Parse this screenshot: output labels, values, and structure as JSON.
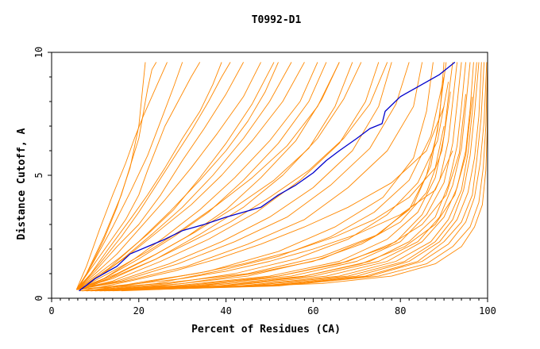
{
  "chart_data": {
    "type": "line",
    "title": "T0992-D1",
    "xlabel": "Percent of Residues (CA)",
    "ylabel": "Distance Cutoff, A",
    "xlim": [
      0,
      100
    ],
    "ylim": [
      0,
      10
    ],
    "xticks": [
      0,
      20,
      40,
      60,
      80,
      100
    ],
    "yticks": [
      0,
      5,
      10
    ],
    "xtick_labels": [
      "0",
      "20",
      "40",
      "60",
      "80",
      "100"
    ],
    "ytick_labels": [
      "0",
      "5",
      "10"
    ],
    "grid": false,
    "colors": {
      "highlight": "#0000cc",
      "others": "#ff8800"
    },
    "highlight_series": {
      "x": [
        6.3,
        10,
        15,
        18,
        22,
        26,
        30,
        35,
        40,
        44,
        48,
        52,
        56,
        60,
        63,
        66,
        70,
        73,
        75.8,
        76.5,
        80,
        84,
        89,
        92.5
      ],
      "y": [
        0.3,
        0.8,
        1.3,
        1.8,
        2.1,
        2.4,
        2.75,
        3.0,
        3.3,
        3.5,
        3.7,
        4.2,
        4.6,
        5.1,
        5.6,
        6.0,
        6.5,
        6.9,
        7.1,
        7.6,
        8.2,
        8.6,
        9.1,
        9.6
      ]
    },
    "other_series": [
      {
        "x": [
          5.7,
          8,
          12,
          16,
          20,
          22,
          23,
          24
        ],
        "y": [
          0.35,
          1.0,
          2.5,
          4.2,
          6.5,
          8.5,
          9.3,
          9.6
        ]
      },
      {
        "x": [
          5.7,
          9,
          13,
          17,
          20,
          22,
          24,
          26,
          29,
          32,
          34
        ],
        "y": [
          0.35,
          1.2,
          2.2,
          3.2,
          4.2,
          5.2,
          6.1,
          7.0,
          8.0,
          9.0,
          9.6
        ]
      },
      {
        "x": [
          5.7,
          9,
          13,
          18,
          22,
          26,
          30,
          34,
          37,
          39
        ],
        "y": [
          0.35,
          1.0,
          2.0,
          3.2,
          4.2,
          5.3,
          6.5,
          7.6,
          8.7,
          9.6
        ]
      },
      {
        "x": [
          5.7,
          10,
          15,
          20,
          25,
          30,
          35,
          40,
          44
        ],
        "y": [
          0.35,
          1.1,
          2.1,
          3.0,
          4.2,
          5.6,
          6.9,
          8.3,
          9.6
        ]
      },
      {
        "x": [
          5.7,
          10,
          15,
          20,
          26,
          32,
          38,
          44,
          48
        ],
        "y": [
          0.35,
          1.0,
          1.8,
          2.8,
          4.0,
          5.3,
          6.7,
          8.2,
          9.6
        ]
      },
      {
        "x": [
          5.7,
          10,
          16,
          22,
          28,
          34,
          40,
          46,
          51
        ],
        "y": [
          0.35,
          0.9,
          1.7,
          2.6,
          3.6,
          4.9,
          6.3,
          7.9,
          9.6
        ]
      },
      {
        "x": [
          5.7,
          11,
          17,
          23,
          30,
          37,
          44,
          50,
          55
        ],
        "y": [
          0.35,
          0.9,
          1.7,
          2.6,
          3.7,
          5.0,
          6.5,
          8.0,
          9.6
        ]
      },
      {
        "x": [
          5.7,
          11,
          18,
          25,
          32,
          39,
          46,
          53,
          58
        ],
        "y": [
          0.35,
          0.9,
          1.8,
          2.8,
          3.8,
          5.0,
          6.4,
          8.0,
          9.6
        ]
      },
      {
        "x": [
          5.7,
          12,
          19,
          26,
          34,
          42,
          50,
          57,
          61
        ],
        "y": [
          0.35,
          0.8,
          1.6,
          2.5,
          3.6,
          4.9,
          6.4,
          8.0,
          9.6
        ]
      },
      {
        "x": [
          5.7,
          12,
          20,
          28,
          36,
          44,
          52,
          59,
          63
        ],
        "y": [
          0.35,
          0.8,
          1.6,
          2.5,
          3.5,
          4.8,
          6.3,
          8.0,
          9.6
        ]
      },
      {
        "x": [
          5.7,
          13,
          22,
          31,
          40,
          48,
          56,
          62,
          66
        ],
        "y": [
          0.35,
          0.8,
          1.6,
          2.5,
          3.6,
          4.9,
          6.4,
          8.1,
          9.6
        ]
      },
      {
        "x": [
          5.7,
          14,
          24,
          34,
          44,
          53,
          61,
          67,
          71
        ],
        "y": [
          0.35,
          0.8,
          1.6,
          2.6,
          3.7,
          5.0,
          6.5,
          8.1,
          9.6
        ]
      },
      {
        "x": [
          5.7,
          14,
          25,
          36,
          47,
          57,
          66,
          72,
          75
        ],
        "y": [
          0.35,
          0.7,
          1.5,
          2.4,
          3.5,
          4.8,
          6.3,
          8.0,
          9.6
        ]
      },
      {
        "x": [
          5.7,
          15,
          27,
          39,
          50,
          60,
          69,
          75,
          78
        ],
        "y": [
          0.35,
          0.7,
          1.4,
          2.3,
          3.3,
          4.5,
          6.0,
          7.8,
          9.6
        ]
      },
      {
        "x": [
          5.7,
          16,
          29,
          42,
          54,
          64,
          73,
          79,
          82
        ],
        "y": [
          0.35,
          0.7,
          1.4,
          2.3,
          3.3,
          4.6,
          6.1,
          7.9,
          9.6
        ]
      },
      {
        "x": [
          5.7,
          17,
          31,
          45,
          58,
          68,
          77,
          83,
          85
        ],
        "y": [
          0.35,
          0.7,
          1.3,
          2.2,
          3.2,
          4.5,
          6.0,
          7.8,
          9.6
        ]
      },
      {
        "x": [
          5.7,
          20,
          36,
          52,
          65,
          76,
          83,
          86,
          87.5
        ],
        "y": [
          0.35,
          0.6,
          1.1,
          1.9,
          2.9,
          4.1,
          5.7,
          7.6,
          9.6
        ]
      },
      {
        "x": [
          5.7,
          25,
          45,
          62,
          75,
          83,
          87,
          89,
          90
        ],
        "y": [
          0.35,
          0.6,
          1.0,
          1.7,
          2.6,
          3.8,
          5.4,
          7.4,
          9.6
        ]
      },
      {
        "x": [
          6.5,
          25,
          45,
          62,
          74,
          82,
          86,
          88.5,
          89.5,
          90.5
        ],
        "y": [
          0.3,
          0.5,
          0.9,
          1.6,
          2.5,
          3.6,
          5.0,
          6.8,
          8.3,
          9.6
        ]
      },
      {
        "x": [
          7,
          28,
          50,
          66,
          77,
          84,
          88,
          90,
          91,
          92
        ],
        "y": [
          0.3,
          0.5,
          0.9,
          1.5,
          2.4,
          3.5,
          4.9,
          6.6,
          8.2,
          9.6
        ]
      },
      {
        "x": [
          7,
          30,
          52,
          68,
          79,
          85,
          89,
          91,
          92,
          93
        ],
        "y": [
          0.3,
          0.5,
          0.9,
          1.5,
          2.3,
          3.4,
          4.8,
          6.4,
          8.0,
          9.6
        ]
      },
      {
        "x": [
          8,
          32,
          55,
          70,
          80,
          86,
          90,
          92,
          93,
          94
        ],
        "y": [
          0.3,
          0.5,
          0.9,
          1.5,
          2.3,
          3.4,
          4.7,
          6.3,
          7.9,
          9.6
        ]
      },
      {
        "x": [
          8,
          35,
          58,
          73,
          82,
          88,
          91,
          93,
          94,
          95
        ],
        "y": [
          0.3,
          0.5,
          0.9,
          1.5,
          2.3,
          3.3,
          4.6,
          6.2,
          7.8,
          9.6
        ]
      },
      {
        "x": [
          9,
          38,
          60,
          75,
          84,
          89,
          92,
          94,
          95,
          96
        ],
        "y": [
          0.3,
          0.5,
          0.9,
          1.5,
          2.3,
          3.3,
          4.6,
          6.1,
          7.8,
          9.6
        ]
      },
      {
        "x": [
          9,
          40,
          63,
          77,
          85,
          90,
          93,
          95,
          96,
          96.8
        ],
        "y": [
          0.3,
          0.5,
          0.9,
          1.5,
          2.3,
          3.3,
          4.5,
          6.0,
          7.7,
          9.6
        ]
      },
      {
        "x": [
          10,
          43,
          66,
          79,
          87,
          91,
          94,
          95.5,
          96.5,
          97.5
        ],
        "y": [
          0.3,
          0.5,
          0.9,
          1.5,
          2.3,
          3.2,
          4.4,
          5.9,
          7.6,
          9.6
        ]
      },
      {
        "x": [
          10,
          45,
          68,
          81,
          88,
          92,
          94.5,
          96,
          97,
          98
        ],
        "y": [
          0.3,
          0.5,
          0.9,
          1.5,
          2.3,
          3.2,
          4.4,
          5.8,
          7.5,
          9.6
        ]
      },
      {
        "x": [
          11,
          48,
          70,
          82,
          89,
          93,
          95.5,
          97,
          98,
          98.6
        ],
        "y": [
          0.3,
          0.5,
          0.9,
          1.5,
          2.3,
          3.2,
          4.3,
          5.7,
          7.4,
          9.6
        ]
      },
      {
        "x": [
          12,
          50,
          72,
          84,
          90,
          94,
          96.5,
          97.5,
          98.5,
          99.2
        ],
        "y": [
          0.3,
          0.5,
          0.9,
          1.5,
          2.3,
          3.1,
          4.2,
          5.6,
          7.3,
          9.6
        ]
      },
      {
        "x": [
          12,
          52,
          73,
          85,
          91,
          95,
          97,
          98.3,
          99.2,
          99.8
        ],
        "y": [
          0.3,
          0.5,
          0.9,
          1.5,
          2.2,
          3.1,
          4.1,
          5.5,
          7.2,
          9.6
        ]
      },
      {
        "x": [
          14,
          58,
          75,
          86,
          92,
          96,
          98,
          99,
          99.6,
          100
        ],
        "y": [
          0.3,
          0.6,
          0.9,
          1.4,
          2.1,
          2.9,
          3.9,
          5.3,
          7.0,
          9.6
        ]
      },
      {
        "x": [
          16,
          62,
          78,
          88,
          94,
          97,
          98.8,
          99.6,
          99.9,
          100
        ],
        "y": [
          0.3,
          0.6,
          0.9,
          1.4,
          2.1,
          2.9,
          3.8,
          5.2,
          6.8,
          8.8
        ]
      },
      {
        "x": [
          8,
          20,
          30,
          40,
          50,
          60,
          70,
          80,
          88,
          92
        ],
        "y": [
          0.3,
          0.6,
          0.8,
          1.1,
          1.5,
          2.0,
          2.6,
          3.4,
          4.4,
          6.0
        ]
      },
      {
        "x": [
          9,
          22,
          33,
          44,
          55,
          65,
          74,
          82,
          88,
          90
        ],
        "y": [
          0.3,
          0.7,
          1.0,
          1.4,
          1.9,
          2.5,
          3.2,
          4.1,
          5.3,
          7.0
        ]
      },
      {
        "x": [
          7,
          18,
          28,
          38,
          48,
          58,
          68,
          78,
          86,
          90
        ],
        "y": [
          0.3,
          0.7,
          1.1,
          1.6,
          2.2,
          2.9,
          3.7,
          4.7,
          6.0,
          7.8
        ]
      },
      {
        "x": [
          7,
          16,
          24,
          32,
          41,
          50,
          59,
          67,
          73,
          77
        ],
        "y": [
          0.35,
          1.0,
          1.6,
          2.3,
          3.1,
          4.1,
          5.2,
          6.5,
          7.9,
          9.6
        ]
      },
      {
        "x": [
          6,
          14,
          22,
          30,
          38,
          46,
          54,
          61,
          66
        ],
        "y": [
          0.35,
          1.1,
          1.9,
          2.8,
          3.8,
          4.9,
          6.2,
          7.8,
          9.6
        ]
      },
      {
        "x": [
          6,
          15,
          24,
          33,
          42,
          51,
          59,
          65,
          69
        ],
        "y": [
          0.35,
          1.0,
          1.8,
          2.7,
          3.7,
          4.8,
          6.1,
          7.8,
          9.6
        ]
      },
      {
        "x": [
          6,
          11,
          16,
          20,
          24,
          28,
          32,
          36,
          39,
          41
        ],
        "y": [
          0.35,
          1.4,
          2.5,
          3.5,
          4.6,
          5.7,
          6.8,
          8.0,
          9.0,
          9.6
        ]
      },
      {
        "x": [
          6,
          10,
          14,
          18,
          22,
          25,
          28,
          30
        ],
        "y": [
          0.35,
          1.6,
          2.9,
          4.3,
          5.8,
          7.2,
          8.6,
          9.6
        ]
      },
      {
        "x": [
          6,
          9,
          12,
          15,
          18,
          20,
          21.5
        ],
        "y": [
          0.35,
          1.3,
          2.4,
          3.7,
          5.3,
          7.0,
          9.6
        ]
      },
      {
        "x": [
          6,
          13,
          20,
          27,
          34,
          40,
          45,
          49,
          52
        ],
        "y": [
          0.35,
          1.2,
          2.3,
          3.5,
          4.8,
          6.0,
          7.2,
          8.4,
          9.6
        ]
      },
      {
        "x": [
          5.7,
          8,
          11,
          14,
          17,
          19,
          21,
          23.5,
          25.5,
          26.5
        ],
        "y": [
          0.35,
          1.3,
          2.8,
          4.2,
          5.5,
          6.5,
          7.4,
          8.4,
          9.2,
          9.6
        ]
      },
      {
        "x": [
          8,
          24,
          38,
          52,
          64,
          74,
          82,
          87,
          90
        ],
        "y": [
          0.3,
          0.6,
          1.1,
          1.7,
          2.5,
          3.5,
          4.8,
          6.6,
          9.0
        ]
      },
      {
        "x": [
          10,
          30,
          46,
          60,
          71,
          80,
          86,
          89.5,
          91.5
        ],
        "y": [
          0.3,
          0.6,
          1.0,
          1.5,
          2.2,
          3.1,
          4.3,
          6.0,
          8.4
        ]
      },
      {
        "x": [
          9,
          27,
          42,
          56,
          68,
          77,
          84,
          88.5,
          91
        ],
        "y": [
          0.3,
          0.6,
          1.0,
          1.6,
          2.4,
          3.4,
          4.7,
          6.4,
          8.8
        ]
      },
      {
        "x": [
          11,
          34,
          52,
          66,
          77,
          85,
          90.5,
          93.5,
          95
        ],
        "y": [
          0.3,
          0.5,
          0.9,
          1.4,
          2.1,
          3.0,
          4.2,
          5.9,
          8.3
        ]
      },
      {
        "x": [
          13,
          40,
          58,
          71,
          81,
          88,
          92.5,
          95,
          96.5
        ],
        "y": [
          0.3,
          0.5,
          0.9,
          1.4,
          2.1,
          3.0,
          4.2,
          5.8,
          8.2
        ]
      }
    ]
  }
}
